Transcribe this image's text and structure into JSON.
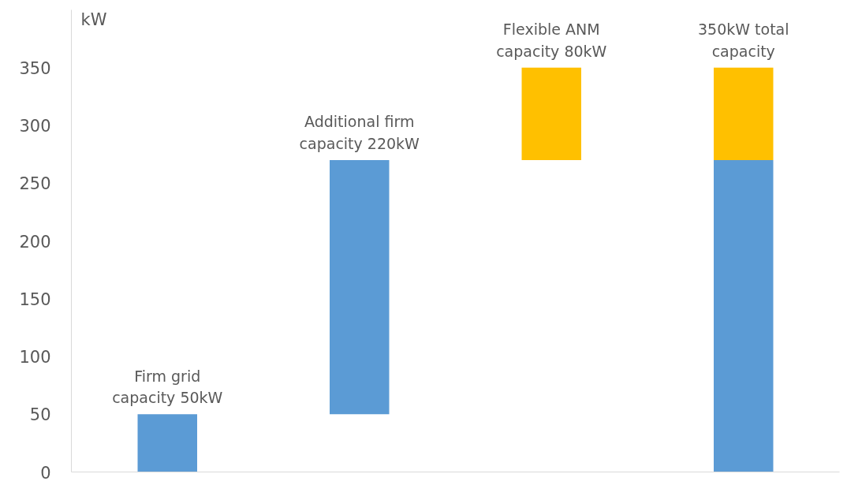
{
  "chart_data": {
    "type": "bar",
    "categories": [
      null,
      null,
      null,
      null
    ],
    "ylabel": "kW",
    "series": [
      {
        "color": "#5b9bd5",
        "values": [
          50,
          220,
          null,
          270
        ],
        "base": [
          0,
          50,
          null,
          0
        ]
      },
      {
        "color": "#ffc000",
        "values": [
          null,
          null,
          80,
          80
        ],
        "base": [
          null,
          null,
          270,
          270
        ]
      }
    ],
    "ylim": [
      0,
      400
    ],
    "yticks": [
      0,
      50,
      100,
      150,
      200,
      250,
      300,
      350
    ],
    "grid": false,
    "annotations": [
      "Firm grid\ncapacity 50kW",
      "Additional firm\ncapacity 220kW",
      "Flexible ANM\ncapacity 80kW",
      "350kW total\ncapacity"
    ]
  }
}
